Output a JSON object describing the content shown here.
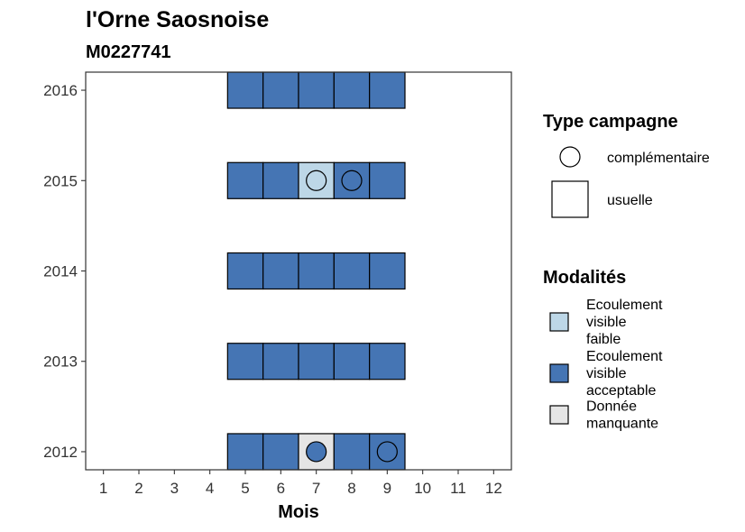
{
  "chart_data": {
    "type": "heatmap",
    "title": "l'Orne Saosnoise",
    "subtitle": "M0227741",
    "xlabel": "Mois",
    "ylabel": "",
    "x_ticks": [
      1,
      2,
      3,
      4,
      5,
      6,
      7,
      8,
      9,
      10,
      11,
      12
    ],
    "y_ticks": [
      2012,
      2013,
      2014,
      2015,
      2016
    ],
    "xlim": [
      0.5,
      12.5
    ],
    "ylim": [
      2011.8,
      2016.2
    ],
    "grid": false,
    "colors": {
      "Ecoulement visible faible": "#bdd7e7",
      "Ecoulement visible acceptable": "#4575b4",
      "Donnée manquante": "#e5e5e5"
    },
    "cells": [
      {
        "year": 2016,
        "month": 5,
        "modalite": "Ecoulement visible acceptable",
        "type": "usuelle"
      },
      {
        "year": 2016,
        "month": 6,
        "modalite": "Ecoulement visible acceptable",
        "type": "usuelle"
      },
      {
        "year": 2016,
        "month": 7,
        "modalite": "Ecoulement visible acceptable",
        "type": "usuelle"
      },
      {
        "year": 2016,
        "month": 8,
        "modalite": "Ecoulement visible acceptable",
        "type": "usuelle"
      },
      {
        "year": 2016,
        "month": 9,
        "modalite": "Ecoulement visible acceptable",
        "type": "usuelle"
      },
      {
        "year": 2015,
        "month": 5,
        "modalite": "Ecoulement visible acceptable",
        "type": "usuelle"
      },
      {
        "year": 2015,
        "month": 6,
        "modalite": "Ecoulement visible acceptable",
        "type": "usuelle"
      },
      {
        "year": 2015,
        "month": 7,
        "modalite": "Ecoulement visible faible",
        "type": "usuelle"
      },
      {
        "year": 2015,
        "month": 8,
        "modalite": "Ecoulement visible acceptable",
        "type": "usuelle"
      },
      {
        "year": 2015,
        "month": 9,
        "modalite": "Ecoulement visible acceptable",
        "type": "usuelle"
      },
      {
        "year": 2014,
        "month": 5,
        "modalite": "Ecoulement visible acceptable",
        "type": "usuelle"
      },
      {
        "year": 2014,
        "month": 6,
        "modalite": "Ecoulement visible acceptable",
        "type": "usuelle"
      },
      {
        "year": 2014,
        "month": 7,
        "modalite": "Ecoulement visible acceptable",
        "type": "usuelle"
      },
      {
        "year": 2014,
        "month": 8,
        "modalite": "Ecoulement visible acceptable",
        "type": "usuelle"
      },
      {
        "year": 2014,
        "month": 9,
        "modalite": "Ecoulement visible acceptable",
        "type": "usuelle"
      },
      {
        "year": 2013,
        "month": 5,
        "modalite": "Ecoulement visible acceptable",
        "type": "usuelle"
      },
      {
        "year": 2013,
        "month": 6,
        "modalite": "Ecoulement visible acceptable",
        "type": "usuelle"
      },
      {
        "year": 2013,
        "month": 7,
        "modalite": "Ecoulement visible acceptable",
        "type": "usuelle"
      },
      {
        "year": 2013,
        "month": 8,
        "modalite": "Ecoulement visible acceptable",
        "type": "usuelle"
      },
      {
        "year": 2013,
        "month": 9,
        "modalite": "Ecoulement visible acceptable",
        "type": "usuelle"
      },
      {
        "year": 2012,
        "month": 5,
        "modalite": "Ecoulement visible acceptable",
        "type": "usuelle"
      },
      {
        "year": 2012,
        "month": 6,
        "modalite": "Ecoulement visible acceptable",
        "type": "usuelle"
      },
      {
        "year": 2012,
        "month": 7,
        "modalite": "Donnée manquante",
        "type": "usuelle"
      },
      {
        "year": 2012,
        "month": 8,
        "modalite": "Ecoulement visible acceptable",
        "type": "usuelle"
      },
      {
        "year": 2012,
        "month": 9,
        "modalite": "Ecoulement visible acceptable",
        "type": "usuelle"
      }
    ],
    "points": [
      {
        "year": 2015,
        "month": 7,
        "modalite": "Ecoulement visible faible",
        "type": "complémentaire"
      },
      {
        "year": 2015,
        "month": 8,
        "modalite": "Ecoulement visible acceptable",
        "type": "complémentaire"
      },
      {
        "year": 2012,
        "month": 7,
        "modalite": "Ecoulement visible acceptable",
        "type": "complémentaire"
      },
      {
        "year": 2012,
        "month": 9,
        "modalite": "Ecoulement visible acceptable",
        "type": "complémentaire"
      }
    ],
    "legend": {
      "placement": "right",
      "type_title": "Type campagne",
      "type_entries": [
        {
          "label": "complémentaire",
          "shape": "circle"
        },
        {
          "label": "usuelle",
          "shape": "square"
        }
      ],
      "modalites_title": "Modalités",
      "modalites_entries": [
        {
          "lines": [
            "Ecoulement",
            "visible",
            "faible"
          ],
          "color": "#bdd7e7"
        },
        {
          "lines": [
            "Ecoulement",
            "visible",
            "acceptable"
          ],
          "color": "#4575b4"
        },
        {
          "lines": [
            "Donnée",
            "manquante"
          ],
          "color": "#e5e5e5"
        }
      ]
    }
  }
}
